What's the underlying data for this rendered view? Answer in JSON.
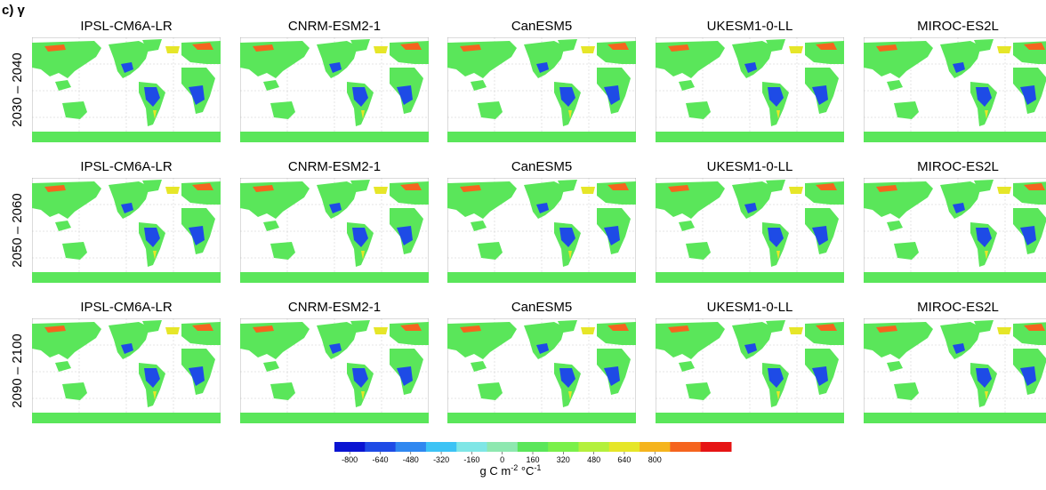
{
  "panel_label": "c) γ",
  "rows": [
    {
      "period": "2030 – 2040",
      "models": [
        "IPSL-CM6A-LR",
        "CNRM-ESM2-1",
        "CanESM5",
        "UKESM1-0-LL",
        "MIROC-ES2L"
      ]
    },
    {
      "period": "2050 – 2060",
      "models": [
        "IPSL-CM6A-LR",
        "CNRM-ESM2-1",
        "CanESM5",
        "UKESM1-0-LL",
        "MIROC-ES2L"
      ]
    },
    {
      "period": "2090 – 2100",
      "models": [
        "IPSL-CM6A-LR",
        "CNRM-ESM2-1",
        "CanESM5",
        "UKESM1-0-LL",
        "MIROC-ES2L"
      ]
    }
  ],
  "colorbar": {
    "ticks": [
      -800,
      -640,
      -480,
      -320,
      -160,
      0,
      160,
      320,
      480,
      640,
      800
    ],
    "colors": [
      "#0a14d2",
      "#1e4be6",
      "#2f87f0",
      "#3cc3f5",
      "#7fe6e6",
      "#8ee8b0",
      "#5ae65a",
      "#7af04a",
      "#b4f03c",
      "#e6e628",
      "#f5b41e",
      "#f5641e",
      "#e61414"
    ],
    "unit": [
      "g C m",
      "-2",
      " °C",
      "-1"
    ]
  }
}
